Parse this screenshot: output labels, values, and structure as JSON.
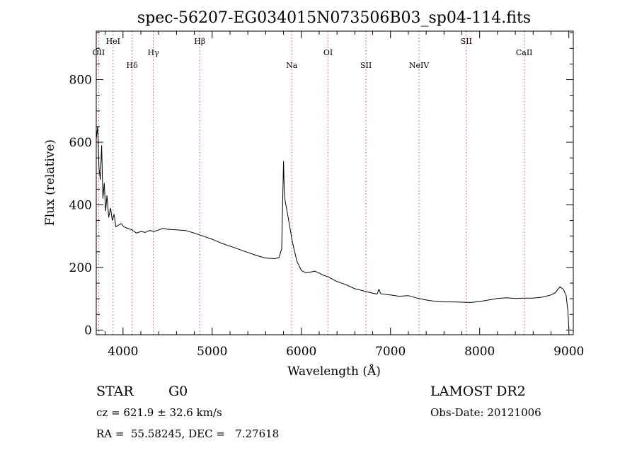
{
  "chart_data": {
    "type": "line",
    "title": "spec-56207-EG034015N073506B03_sp04-114.fits",
    "xlabel": "Wavelength (Å)",
    "ylabel": "Flux (relative)",
    "xlim": [
      3700,
      9050
    ],
    "ylim": [
      -15,
      955
    ],
    "x_ticks": [
      4000,
      5000,
      6000,
      7000,
      8000,
      9000
    ],
    "y_ticks": [
      0,
      200,
      400,
      600,
      800
    ],
    "grid": false,
    "lines": [
      {
        "label": "OII",
        "wavelength": 3727,
        "row": 0
      },
      {
        "label": "HeI",
        "wavelength": 3889,
        "row": 1
      },
      {
        "label": "Hδ",
        "wavelength": 4102,
        "row": 2
      },
      {
        "label": "Hγ",
        "wavelength": 4340,
        "row": 0
      },
      {
        "label": "Hβ",
        "wavelength": 4861,
        "row": 1
      },
      {
        "label": "Na",
        "wavelength": 5893,
        "row": 2
      },
      {
        "label": "OI",
        "wavelength": 6300,
        "row": 0
      },
      {
        "label": "SII",
        "wavelength": 6725,
        "row": 2
      },
      {
        "label": "NeIV",
        "wavelength": 7320,
        "row": 2
      },
      {
        "label": "SII",
        "wavelength": 7850,
        "row": 1
      },
      {
        "label": "CaII",
        "wavelength": 8500,
        "row": 0
      }
    ],
    "series": [
      {
        "x": [
          3700,
          3715,
          3730,
          3745,
          3760,
          3775,
          3790,
          3805,
          3820,
          3840,
          3860,
          3880,
          3900,
          3920,
          3950,
          3980,
          4010,
          4050,
          4100,
          4150,
          4200,
          4250,
          4300,
          4350,
          4400,
          4450,
          4500,
          4600,
          4700,
          4800,
          4900,
          5000,
          5100,
          5200,
          5300,
          5400,
          5500,
          5600,
          5700,
          5750,
          5780,
          5800,
          5810,
          5820,
          5840,
          5870,
          5900,
          5950,
          6000,
          6050,
          6100,
          6150,
          6200,
          6250,
          6300,
          6400,
          6500,
          6600,
          6700,
          6800,
          6850,
          6870,
          6890,
          7000,
          7100,
          7200,
          7300,
          7400,
          7500,
          7600,
          7700,
          7800,
          7900,
          8000,
          8100,
          8200,
          8300,
          8400,
          8500,
          8600,
          8700,
          8800,
          8850,
          8900,
          8940,
          8970,
          8990,
          9000
        ],
        "y": [
          610,
          650,
          520,
          480,
          590,
          420,
          470,
          380,
          430,
          360,
          390,
          350,
          370,
          330,
          335,
          340,
          330,
          325,
          320,
          310,
          315,
          312,
          318,
          315,
          320,
          325,
          322,
          320,
          318,
          310,
          300,
          290,
          278,
          268,
          258,
          248,
          238,
          230,
          228,
          232,
          260,
          540,
          430,
          410,
          380,
          330,
          280,
          220,
          190,
          183,
          185,
          188,
          182,
          175,
          170,
          155,
          145,
          132,
          125,
          118,
          115,
          130,
          116,
          112,
          108,
          110,
          102,
          96,
          92,
          90,
          90,
          89,
          88,
          91,
          96,
          101,
          103,
          101,
          102,
          102,
          105,
          112,
          120,
          138,
          130,
          110,
          60,
          5
        ]
      }
    ]
  },
  "info": {
    "object_class": "STAR",
    "subclass": "G0",
    "redshift": "cz = 621.9 ± 32.6 km/s",
    "coords": "RA =  55.58245, DEC =   7.27618",
    "survey": "LAMOST DR2",
    "obs_date": "Obs-Date: 20121006"
  }
}
